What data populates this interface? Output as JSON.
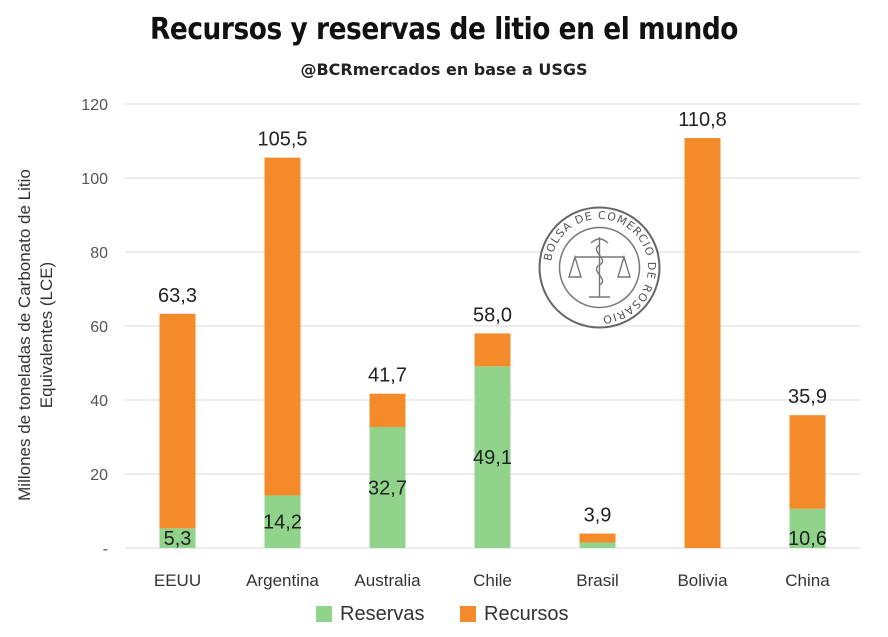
{
  "header": {
    "title": "Recursos y reservas de litio en el mundo",
    "subtitle": "@BCRmercados en base a USGS"
  },
  "seal": {
    "text": "BOLSA DE COMERCIO DE ROSARIO"
  },
  "chart_data": {
    "type": "bar",
    "stacked": true,
    "title": "Recursos y reservas de litio en el mundo",
    "ylabel_lines": [
      "Millones de toneladas de Carbonato de Litio",
      "Equivalentes (LCE)"
    ],
    "categories": [
      "EEUU",
      "Argentina",
      "Australia",
      "Chile",
      "Brasil",
      "Bolivia",
      "China"
    ],
    "series": [
      {
        "name": "Reservas",
        "color": "#90d48c",
        "values": [
          5.3,
          14.2,
          32.7,
          49.1,
          1.5,
          0,
          10.6
        ]
      },
      {
        "name": "Recursos",
        "color": "#f58a2b",
        "values": [
          58.0,
          91.3,
          9.0,
          8.9,
          2.4,
          110.8,
          25.3
        ]
      }
    ],
    "total_labels": [
      "63,3",
      "105,5",
      "41,7",
      "58,0",
      "3,9",
      "110,8",
      "35,9"
    ],
    "reserve_labels": [
      "5,3",
      "14,2",
      "32,7",
      "49,1",
      "",
      "",
      "10,6"
    ],
    "yticks": [
      "-",
      "20",
      "40",
      "60",
      "80",
      "100",
      "120"
    ],
    "ylim": [
      0,
      120
    ],
    "grid": true,
    "legend_position": "bottom"
  }
}
